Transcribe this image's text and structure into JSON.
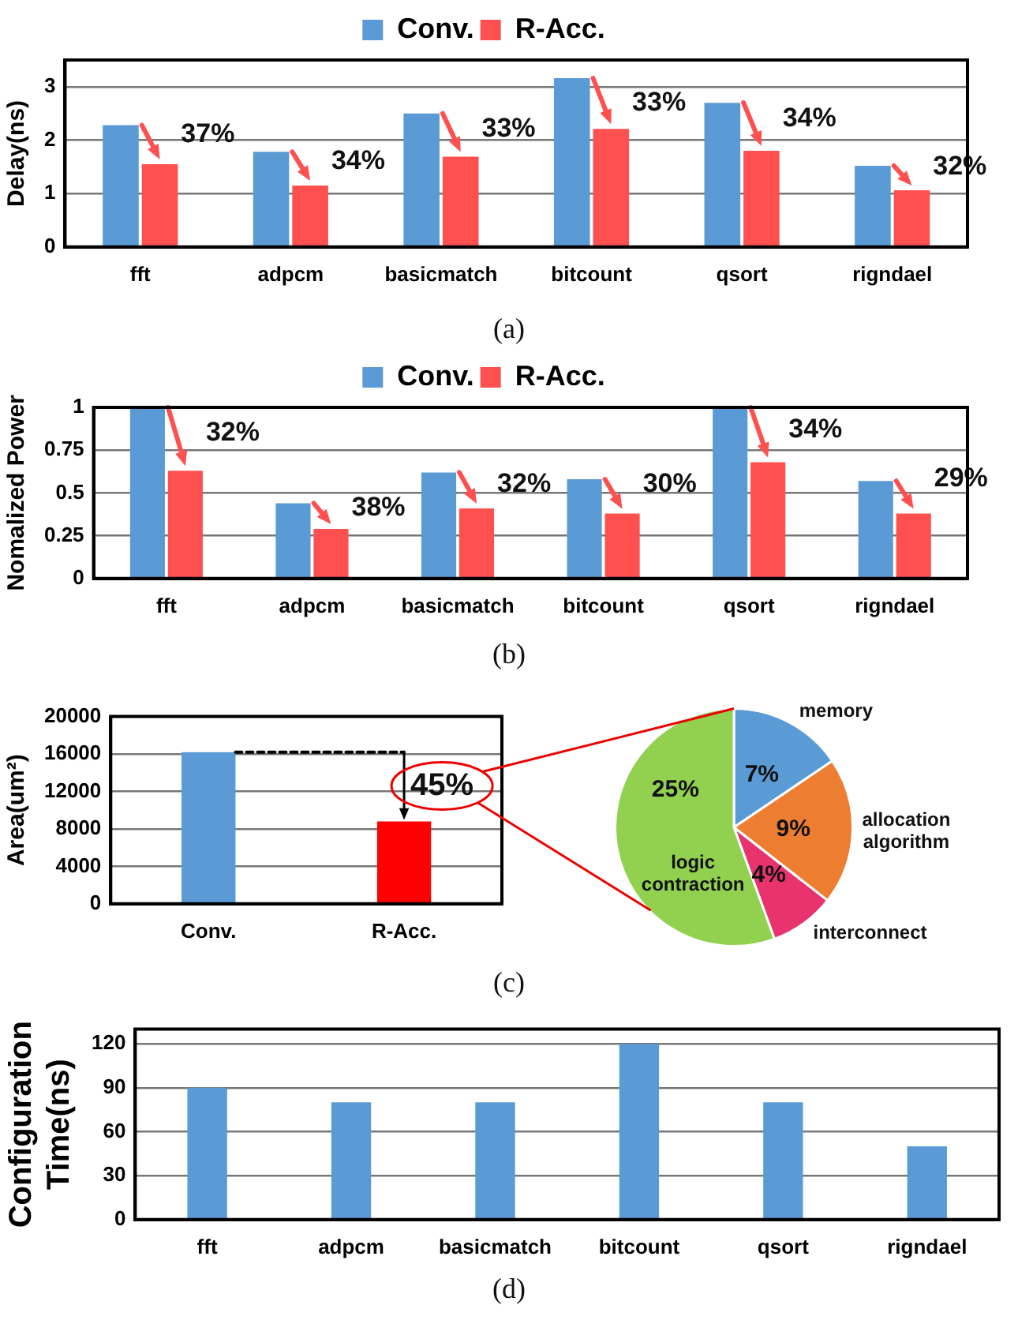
{
  "chart_data": [
    {
      "type": "bar",
      "ylabel": "Delay(ns)",
      "categories": [
        "fft",
        "adpcm",
        "basicmatch",
        "bitcount",
        "qsort",
        "rigndael"
      ],
      "series": [
        {
          "name": "Conv.",
          "color": "#5b9bd5",
          "values": [
            2.28,
            1.78,
            2.5,
            3.16,
            2.7,
            1.52
          ]
        },
        {
          "name": "R-Acc.",
          "color": "#ff5050",
          "values": [
            1.55,
            1.15,
            1.69,
            2.21,
            1.8,
            1.06
          ]
        }
      ],
      "ylim": [
        0,
        3.5
      ],
      "yticks": [
        0,
        1,
        2,
        3
      ],
      "grid": "y",
      "legend": "top",
      "annotations": [
        {
          "text": "37%",
          "x": "fft",
          "y": 2.1
        },
        {
          "text": "34%",
          "x": "adpcm",
          "y": 1.6
        },
        {
          "text": "33%",
          "x": "basicmatch",
          "y": 2.2
        },
        {
          "text": "33%",
          "x": "bitcount",
          "y": 2.7
        },
        {
          "text": "34%",
          "x": "qsort",
          "y": 2.4
        },
        {
          "text": "32%",
          "x": "rigndael",
          "y": 1.5
        },
        "(a)"
      ]
    },
    {
      "type": "bar",
      "ylabel": "Nomalized Power",
      "categories": [
        "fft",
        "adpcm",
        "basicmatch",
        "bitcount",
        "qsort",
        "rigndael"
      ],
      "series": [
        {
          "name": "Conv.",
          "color": "#5b9bd5",
          "values": [
            1.0,
            0.44,
            0.62,
            0.58,
            1.0,
            0.57
          ]
        },
        {
          "name": "R-Acc.",
          "color": "#ff5050",
          "values": [
            0.63,
            0.29,
            0.41,
            0.38,
            0.68,
            0.38
          ]
        }
      ],
      "ylim": [
        0,
        1
      ],
      "yticks": [
        0,
        0.25,
        0.5,
        0.75,
        1
      ],
      "grid": "y",
      "legend": "top",
      "annotations": [
        {
          "text": "32%",
          "x": "fft",
          "y": 0.85
        },
        {
          "text": "38%",
          "x": "adpcm",
          "y": 0.41
        },
        {
          "text": "32%",
          "x": "basicmatch",
          "y": 0.55
        },
        {
          "text": "30%",
          "x": "bitcount",
          "y": 0.55
        },
        {
          "text": "34%",
          "x": "qsort",
          "y": 0.87
        },
        {
          "text": "29%",
          "x": "rigndael",
          "y": 0.58
        },
        "(b)"
      ]
    },
    {
      "type": "bar",
      "ylabel": "Area(um²)",
      "categories": [
        "Conv.",
        "R-Acc."
      ],
      "values": [
        16200,
        8800
      ],
      "colors": [
        "#5b9bd5",
        "#ff0000"
      ],
      "ylim": [
        0,
        20000
      ],
      "yticks": [
        0,
        4000,
        8000,
        12000,
        16000,
        20000
      ],
      "grid": "y",
      "annotations": [
        {
          "text": "45%",
          "x": "R-Acc.",
          "y": 8800
        },
        "(c)"
      ]
    },
    {
      "type": "pie",
      "categories": [
        "memory",
        "allocation algorithm",
        "interconnect",
        "logic contraction"
      ],
      "values": [
        7,
        9,
        4,
        25
      ],
      "colors": [
        "#5b9bd5",
        "#ed7d31",
        "#e8336f",
        "#92d050"
      ],
      "value_labels": [
        "7%",
        "9%",
        "4%",
        "25%"
      ]
    },
    {
      "type": "bar",
      "ylabel": "Configuration Time(ns)",
      "categories": [
        "fft",
        "adpcm",
        "basicmatch",
        "bitcount",
        "qsort",
        "rigndael"
      ],
      "values": [
        90,
        80,
        80,
        120,
        80,
        50
      ],
      "color": "#5b9bd5",
      "ylim": [
        0,
        130
      ],
      "yticks": [
        0,
        30,
        60,
        90,
        120
      ],
      "grid": "y",
      "annotations": [
        "(d)"
      ]
    }
  ]
}
